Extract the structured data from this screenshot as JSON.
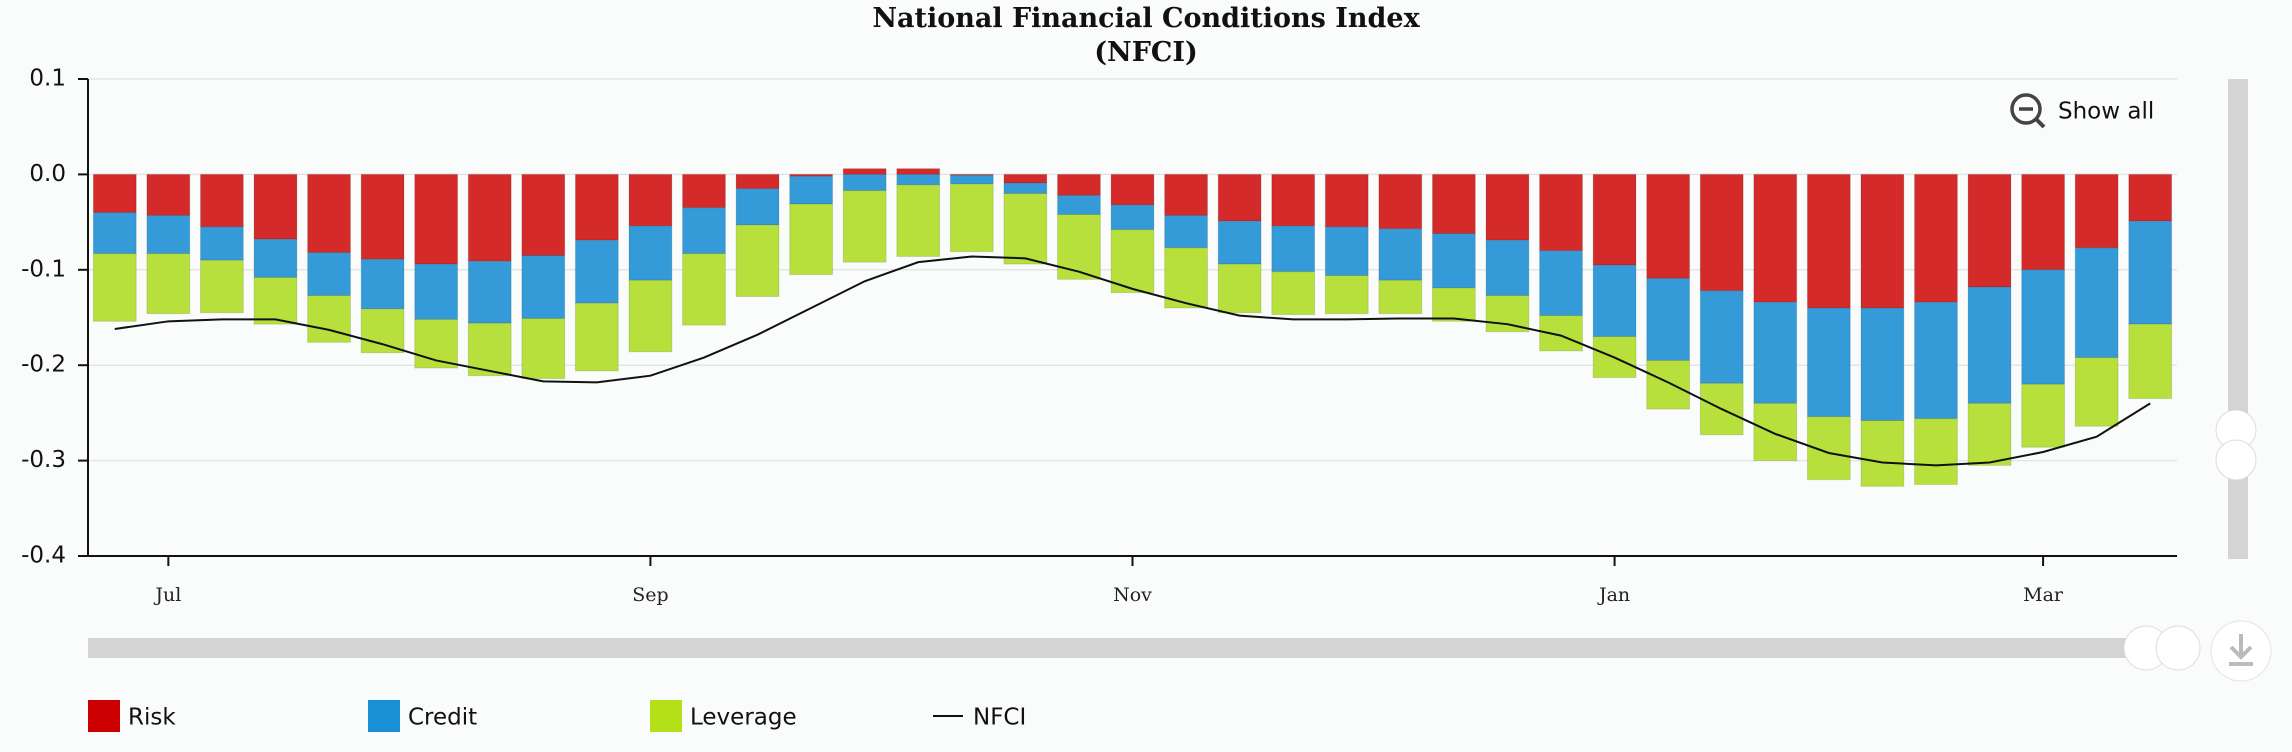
{
  "chart_data": {
    "type": "bar",
    "stacked": true,
    "title": "National Financial Conditions Index (NFCI)",
    "zoom_button": "Show all",
    "categories": [
      null,
      "Jul",
      null,
      null,
      null,
      null,
      null,
      null,
      null,
      null,
      "Sep",
      null,
      null,
      null,
      null,
      null,
      null,
      null,
      null,
      "Nov",
      null,
      null,
      null,
      null,
      null,
      null,
      null,
      null,
      "Jan",
      null,
      null,
      null,
      null,
      null,
      null,
      null,
      "Mar",
      null,
      null
    ],
    "series": [
      {
        "name": "Risk",
        "type": "bar",
        "color": "#d42a2a",
        "legend_color": "#cc0000",
        "values": [
          -0.04,
          -0.043,
          -0.055,
          -0.068,
          -0.082,
          -0.089,
          -0.094,
          -0.091,
          -0.085,
          -0.069,
          -0.054,
          -0.035,
          -0.015,
          -0.002,
          0.006,
          0.006,
          -0.001,
          -0.009,
          -0.022,
          -0.032,
          -0.043,
          -0.049,
          -0.054,
          -0.055,
          -0.057,
          -0.062,
          -0.069,
          -0.08,
          -0.095,
          -0.109,
          -0.122,
          -0.134,
          -0.14,
          -0.14,
          -0.134,
          -0.118,
          -0.1,
          -0.077,
          -0.049
        ]
      },
      {
        "name": "Credit",
        "type": "bar",
        "color": "#359bd8",
        "legend_color": "#1a8fd6",
        "values": [
          -0.043,
          -0.04,
          -0.035,
          -0.04,
          -0.045,
          -0.052,
          -0.058,
          -0.065,
          -0.066,
          -0.066,
          -0.057,
          -0.048,
          -0.038,
          -0.029,
          -0.017,
          -0.011,
          -0.009,
          -0.011,
          -0.02,
          -0.026,
          -0.034,
          -0.045,
          -0.048,
          -0.051,
          -0.054,
          -0.057,
          -0.058,
          -0.068,
          -0.075,
          -0.086,
          -0.097,
          -0.106,
          -0.114,
          -0.118,
          -0.122,
          -0.122,
          -0.12,
          -0.115,
          -0.108
        ]
      },
      {
        "name": "Leverage",
        "type": "bar",
        "color": "#b8e03c",
        "legend_color": "#b4e01a",
        "values": [
          -0.071,
          -0.063,
          -0.055,
          -0.049,
          -0.049,
          -0.046,
          -0.051,
          -0.055,
          -0.063,
          -0.071,
          -0.075,
          -0.075,
          -0.075,
          -0.074,
          -0.075,
          -0.075,
          -0.071,
          -0.074,
          -0.068,
          -0.066,
          -0.063,
          -0.051,
          -0.045,
          -0.04,
          -0.035,
          -0.035,
          -0.038,
          -0.037,
          -0.043,
          -0.051,
          -0.054,
          -0.06,
          -0.066,
          -0.069,
          -0.069,
          -0.065,
          -0.066,
          -0.072,
          -0.078
        ]
      },
      {
        "name": "NFCI",
        "type": "line",
        "color": "#111111",
        "values": [
          -0.162,
          -0.154,
          -0.152,
          -0.152,
          -0.163,
          -0.178,
          -0.195,
          -0.206,
          -0.217,
          -0.218,
          -0.211,
          -0.192,
          -0.168,
          -0.14,
          -0.112,
          -0.092,
          -0.086,
          -0.088,
          -0.102,
          -0.12,
          -0.135,
          -0.148,
          -0.152,
          -0.152,
          -0.151,
          -0.151,
          -0.157,
          -0.169,
          -0.192,
          -0.218,
          -0.246,
          -0.272,
          -0.292,
          -0.302,
          -0.305,
          -0.302,
          -0.291,
          -0.275,
          -0.24
        ]
      }
    ],
    "ylim": [
      -0.4,
      0.1
    ],
    "yticks": [
      0.1,
      {
        "value": 0,
        "label": "0.0"
      },
      -0.1,
      -0.2,
      -0.3,
      -0.4
    ],
    "grid": true
  }
}
